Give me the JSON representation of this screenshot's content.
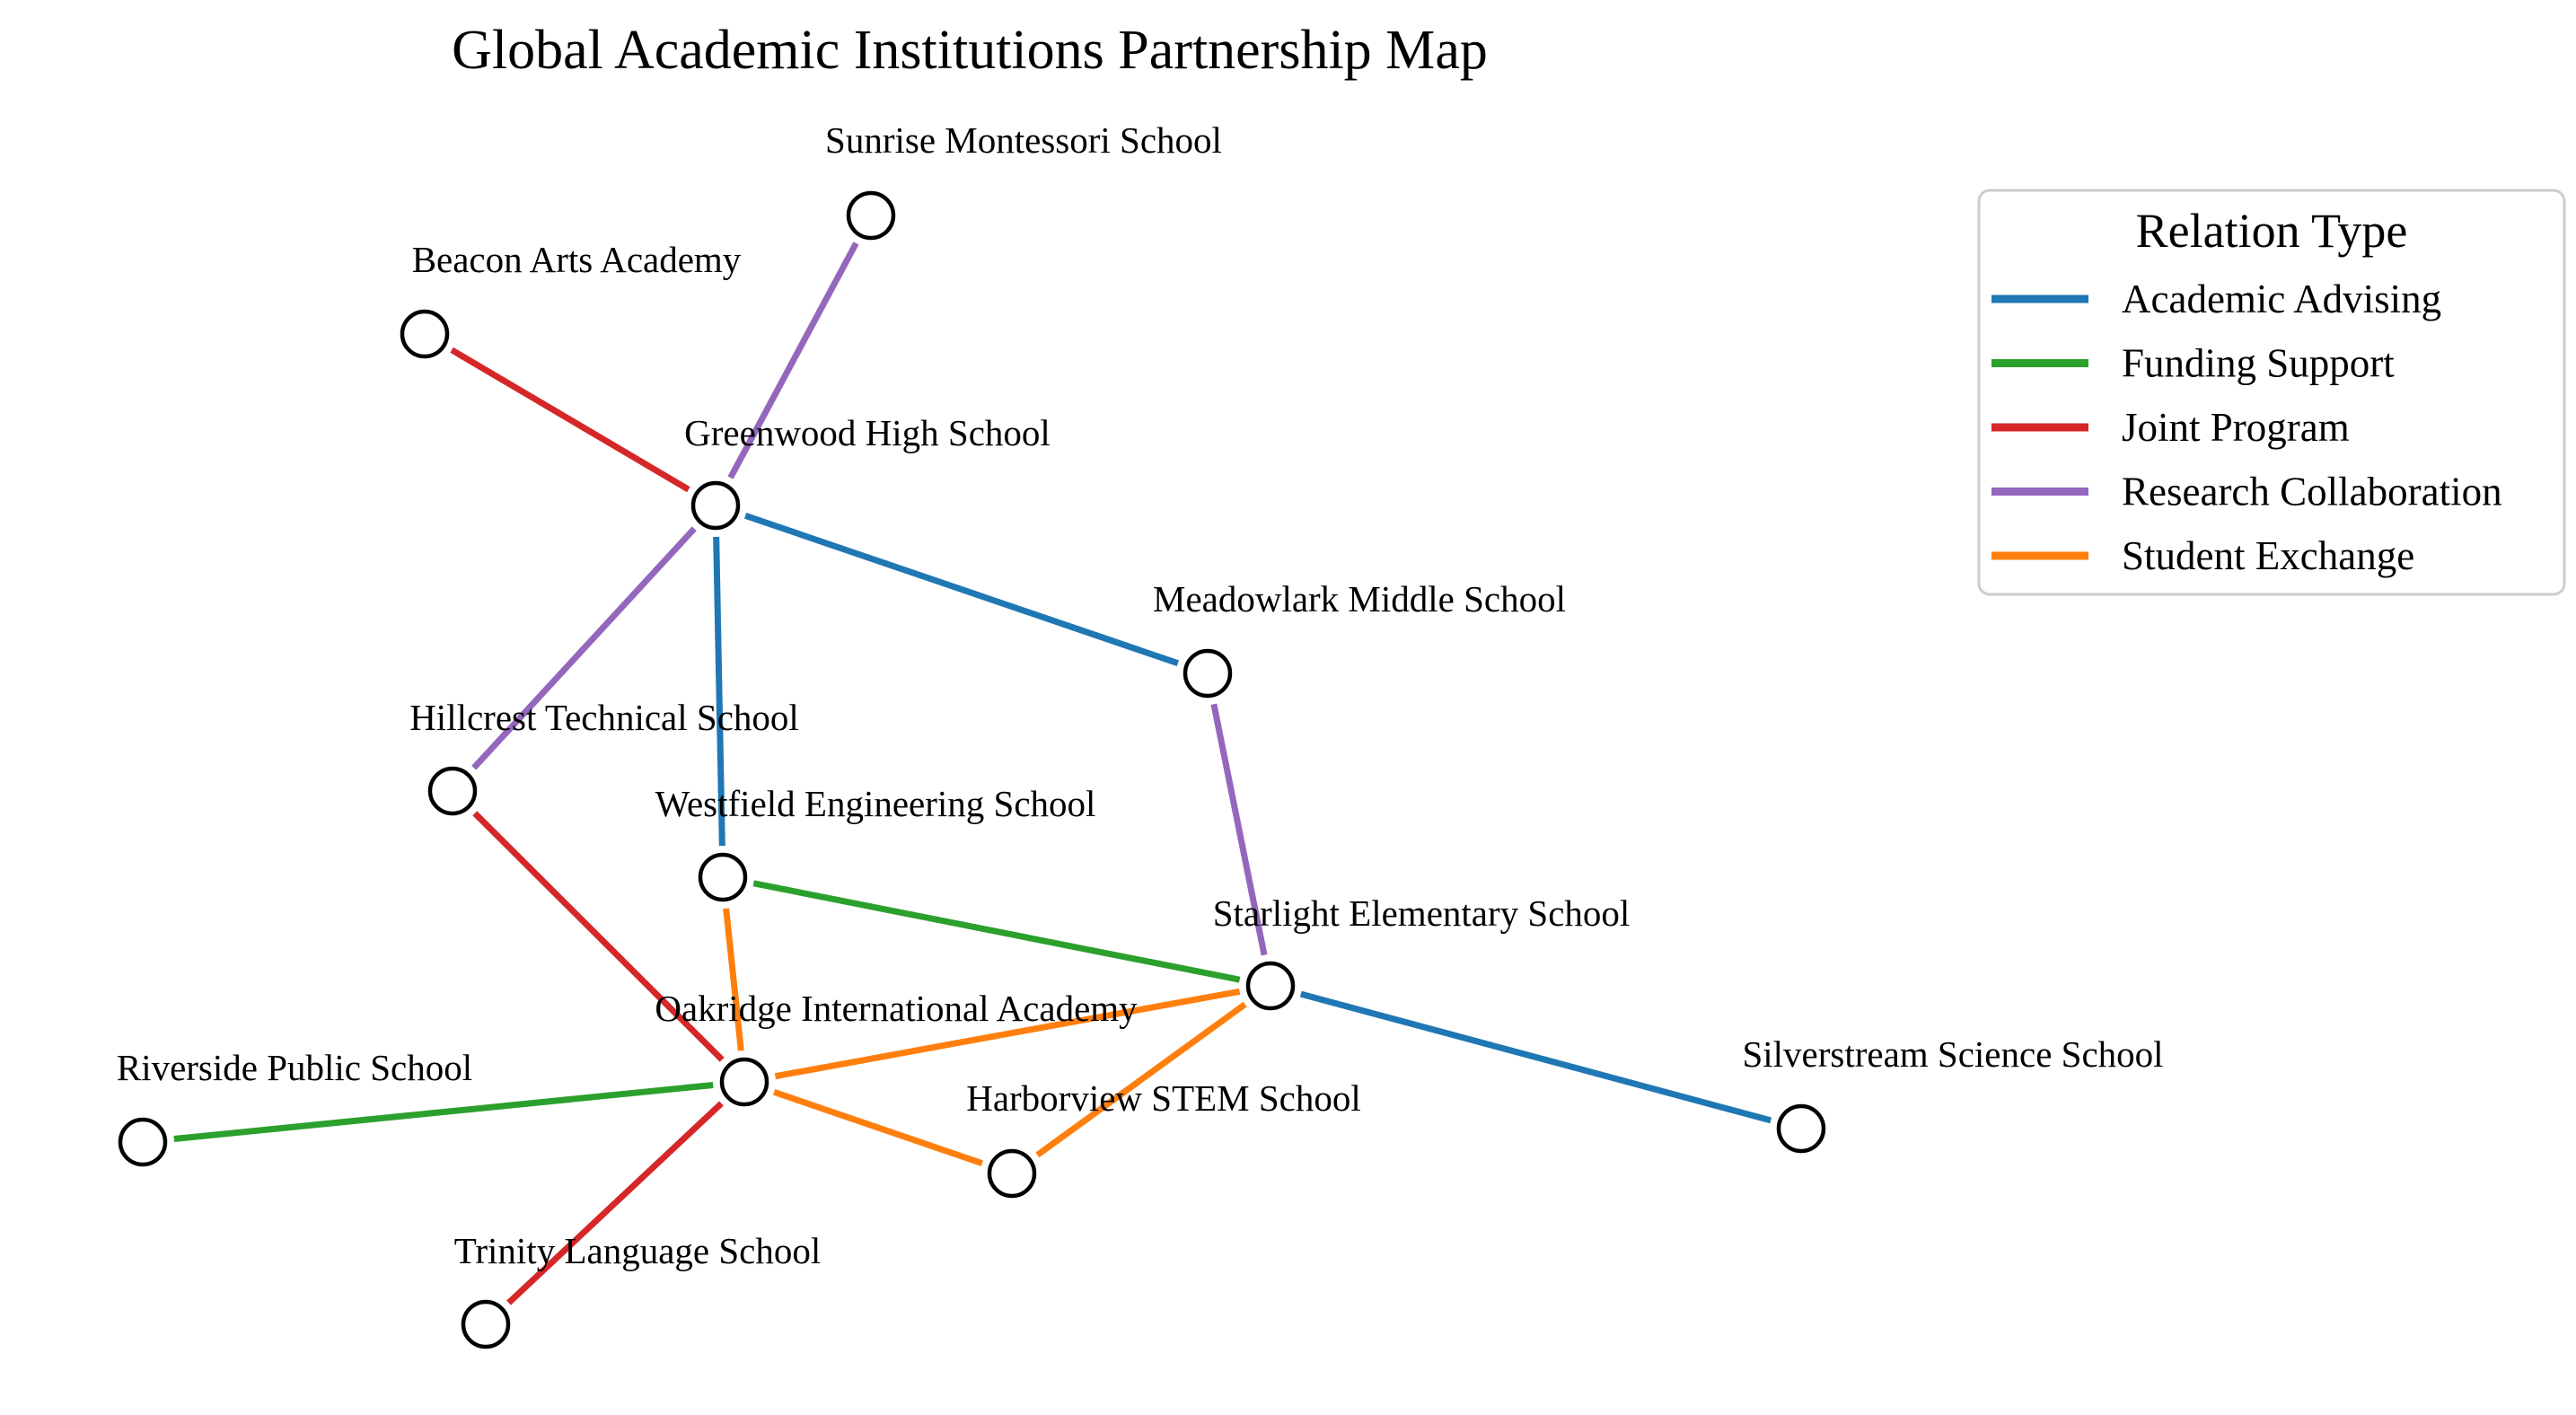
{
  "title": "Global Academic Institutions Partnership Map",
  "legend": {
    "title": "Relation Type",
    "items": [
      {
        "key": "academic",
        "label": "Academic Advising",
        "color": "#1f77b4"
      },
      {
        "key": "funding",
        "label": "Funding Support",
        "color": "#2ca02c"
      },
      {
        "key": "joint",
        "label": "Joint Program",
        "color": "#d62728"
      },
      {
        "key": "research",
        "label": "Research Collaboration",
        "color": "#9467bd"
      },
      {
        "key": "exchange",
        "label": "Student Exchange",
        "color": "#ff7f0e"
      }
    ]
  },
  "nodes": [
    {
      "id": "sunrise",
      "label": "Sunrise Montessori School"
    },
    {
      "id": "beacon",
      "label": "Beacon Arts Academy"
    },
    {
      "id": "greenwood",
      "label": "Greenwood High School"
    },
    {
      "id": "meadowlark",
      "label": "Meadowlark Middle School"
    },
    {
      "id": "hillcrest",
      "label": "Hillcrest Technical School"
    },
    {
      "id": "westfield",
      "label": "Westfield Engineering School"
    },
    {
      "id": "starlight",
      "label": "Starlight Elementary School"
    },
    {
      "id": "oakridge",
      "label": "Oakridge International Academy"
    },
    {
      "id": "riverside",
      "label": "Riverside Public School"
    },
    {
      "id": "harborview",
      "label": "Harborview STEM School"
    },
    {
      "id": "silverstream",
      "label": "Silverstream Science School"
    },
    {
      "id": "trinity",
      "label": "Trinity Language School"
    }
  ],
  "edges": [
    {
      "source": "greenwood",
      "target": "sunrise",
      "type": "research"
    },
    {
      "source": "greenwood",
      "target": "beacon",
      "type": "joint"
    },
    {
      "source": "greenwood",
      "target": "meadowlark",
      "type": "academic"
    },
    {
      "source": "greenwood",
      "target": "hillcrest",
      "type": "research"
    },
    {
      "source": "greenwood",
      "target": "westfield",
      "type": "academic"
    },
    {
      "source": "meadowlark",
      "target": "starlight",
      "type": "research"
    },
    {
      "source": "hillcrest",
      "target": "oakridge",
      "type": "joint"
    },
    {
      "source": "westfield",
      "target": "starlight",
      "type": "funding"
    },
    {
      "source": "westfield",
      "target": "oakridge",
      "type": "exchange"
    },
    {
      "source": "starlight",
      "target": "oakridge",
      "type": "exchange"
    },
    {
      "source": "starlight",
      "target": "harborview",
      "type": "exchange"
    },
    {
      "source": "starlight",
      "target": "silverstream",
      "type": "academic"
    },
    {
      "source": "oakridge",
      "target": "riverside",
      "type": "funding"
    },
    {
      "source": "oakridge",
      "target": "harborview",
      "type": "exchange"
    },
    {
      "source": "oakridge",
      "target": "trinity",
      "type": "joint"
    }
  ]
}
